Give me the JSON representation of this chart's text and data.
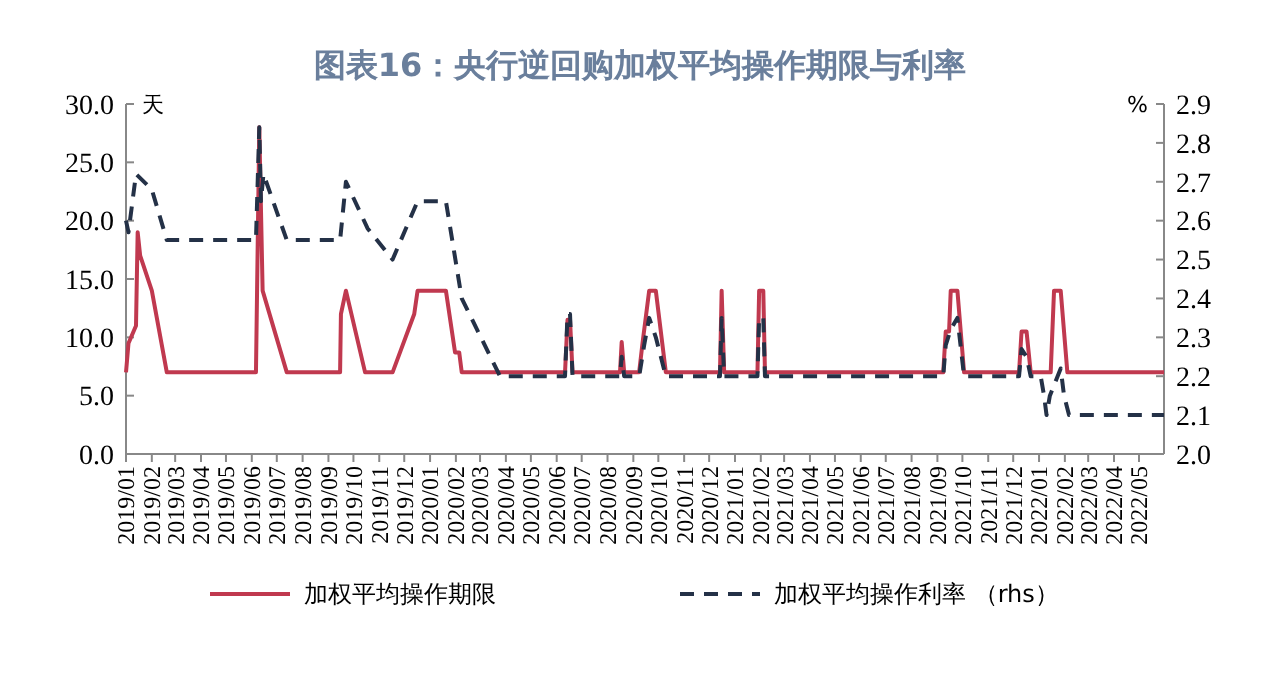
{
  "chart_data": {
    "type": "line",
    "title": "图表16：央行逆回购加权平均操作期限与利率",
    "ylabel": "天",
    "y2label": "%",
    "xlim": [
      "2019-01-01",
      "2022-05-31"
    ],
    "xticks": [
      {
        "value": "2019-01",
        "label": "2019/01"
      },
      {
        "value": "2019-02",
        "label": "2019/02"
      },
      {
        "value": "2019-03",
        "label": "2019/03"
      },
      {
        "value": "2019-04",
        "label": "2019/04"
      },
      {
        "value": "2019-05",
        "label": "2019/05"
      },
      {
        "value": "2019-06",
        "label": "2019/06"
      },
      {
        "value": "2019-07",
        "label": "2019/07"
      },
      {
        "value": "2019-08",
        "label": "2019/08"
      },
      {
        "value": "2019-09",
        "label": "2019/09"
      },
      {
        "value": "2019-10",
        "label": "2019/10"
      },
      {
        "value": "2019-11",
        "label": "2019/11"
      },
      {
        "value": "2019-12",
        "label": "2019/12"
      },
      {
        "value": "2020-01",
        "label": "2020/01"
      },
      {
        "value": "2020-02",
        "label": "2020/02"
      },
      {
        "value": "2020-03",
        "label": "2020/03"
      },
      {
        "value": "2020-04",
        "label": "2020/04"
      },
      {
        "value": "2020-05",
        "label": "2020/05"
      },
      {
        "value": "2020-06",
        "label": "2020/06"
      },
      {
        "value": "2020-07",
        "label": "2020/07"
      },
      {
        "value": "2020-08",
        "label": "2020/08"
      },
      {
        "value": "2020-09",
        "label": "2020/09"
      },
      {
        "value": "2020-10",
        "label": "2020/10"
      },
      {
        "value": "2020-11",
        "label": "2020/11"
      },
      {
        "value": "2020-12",
        "label": "2020/12"
      },
      {
        "value": "2021-01",
        "label": "2021/01"
      },
      {
        "value": "2021-02",
        "label": "2021/02"
      },
      {
        "value": "2021-03",
        "label": "2021/03"
      },
      {
        "value": "2021-04",
        "label": "2021/04"
      },
      {
        "value": "2021-05",
        "label": "2021/05"
      },
      {
        "value": "2021-06",
        "label": "2021/06"
      },
      {
        "value": "2021-07",
        "label": "2021/07"
      },
      {
        "value": "2021-08",
        "label": "2021/08"
      },
      {
        "value": "2021-09",
        "label": "2021/09"
      },
      {
        "value": "2021-10",
        "label": "2021/10"
      },
      {
        "value": "2021-11",
        "label": "2021/11"
      },
      {
        "value": "2021-12",
        "label": "2021/12"
      },
      {
        "value": "2022-01",
        "label": "2022/01"
      },
      {
        "value": "2022-02",
        "label": "2022/02"
      },
      {
        "value": "2022-03",
        "label": "2022/03"
      },
      {
        "value": "2022-04",
        "label": "2022/04"
      },
      {
        "value": "2022-05",
        "label": "2022/05"
      }
    ],
    "ylim": [
      0,
      30
    ],
    "yticks": [
      {
        "value": 0,
        "label": "0.0"
      },
      {
        "value": 5,
        "label": "5.0"
      },
      {
        "value": 10,
        "label": "10.0"
      },
      {
        "value": 15,
        "label": "15.0"
      },
      {
        "value": 20,
        "label": "20.0"
      },
      {
        "value": 25,
        "label": "25.0"
      },
      {
        "value": 30,
        "label": "30.0"
      }
    ],
    "y2lim": [
      2.0,
      2.9
    ],
    "y2ticks": [
      {
        "value": 2.0,
        "label": "2.0"
      },
      2.1,
      2.2,
      2.3,
      2.4,
      2.5,
      2.6,
      2.7,
      2.8,
      2.9
    ],
    "grid": false,
    "legend": "bottom",
    "marker": "none",
    "series": [
      {
        "name": "加权平均操作期限",
        "color": "#c0394f",
        "line_style": "solid",
        "x": [
          "2019-01-01",
          "2019-01-04",
          "2019-01-13",
          "2019-01-15",
          "2019-01-18",
          "2019-02-01",
          "2019-02-19",
          "2019-06-06",
          "2019-06-10",
          "2019-06-14",
          "2019-07-13",
          "2019-09-15",
          "2019-09-16",
          "2019-09-22",
          "2019-10-15",
          "2019-11-17",
          "2019-12-13",
          "2019-12-17",
          "2020-01-20",
          "2020-01-31",
          "2020-02-05",
          "2020-02-08",
          "2020-06-11",
          "2020-06-14",
          "2020-06-17",
          "2020-06-20",
          "2020-08-16",
          "2020-08-18",
          "2020-08-21",
          "2020-09-08",
          "2020-09-12",
          "2020-09-20",
          "2020-09-28",
          "2020-10-10",
          "2020-12-14",
          "2020-12-16",
          "2020-12-19",
          "2021-01-28",
          "2021-01-30",
          "2021-02-04",
          "2021-02-06",
          "2021-09-08",
          "2021-09-11",
          "2021-09-15",
          "2021-09-17",
          "2021-09-25",
          "2021-10-03",
          "2021-12-08",
          "2021-12-11",
          "2021-12-17",
          "2021-12-22",
          "2022-01-15",
          "2022-01-19",
          "2022-01-27",
          "2022-02-04",
          "2022-05-31"
        ],
        "values": [
          7,
          9.5,
          11,
          19,
          17,
          14,
          7,
          7,
          28,
          14,
          7,
          7,
          12,
          14,
          7,
          7,
          12,
          14,
          14,
          8.7,
          8.7,
          7,
          7,
          11.5,
          11.5,
          7,
          7,
          9.6,
          7,
          7,
          9.5,
          14,
          14,
          7,
          7,
          14,
          7,
          7,
          14,
          14,
          7,
          7,
          10.5,
          10.5,
          14,
          14,
          7,
          7,
          10.5,
          10.5,
          7,
          7,
          14,
          14,
          7,
          7
        ]
      },
      {
        "name": "加权平均操作利率 （rhs）",
        "color": "#243147",
        "line_style": "dashed",
        "axis": "y2",
        "x": [
          "2019-01-01",
          "2019-01-04",
          "2019-01-13",
          "2019-02-01",
          "2019-02-19",
          "2019-06-06",
          "2019-06-10",
          "2019-06-12",
          "2019-06-15",
          "2019-07-13",
          "2019-09-15",
          "2019-09-22",
          "2019-10-18",
          "2019-11-17",
          "2019-12-17",
          "2020-01-20",
          "2020-02-08",
          "2020-03-25",
          "2020-06-11",
          "2020-06-14",
          "2020-06-17",
          "2020-06-20",
          "2020-08-16",
          "2020-08-18",
          "2020-08-21",
          "2020-09-08",
          "2020-09-14",
          "2020-09-20",
          "2020-09-28",
          "2020-10-10",
          "2020-12-14",
          "2020-12-16",
          "2020-12-19",
          "2021-01-28",
          "2021-01-30",
          "2021-02-04",
          "2021-02-06",
          "2021-09-08",
          "2021-09-11",
          "2021-09-17",
          "2021-09-25",
          "2021-10-03",
          "2021-12-08",
          "2021-12-11",
          "2021-12-17",
          "2021-12-22",
          "2022-01-03",
          "2022-01-07",
          "2022-01-10",
          "2022-01-14",
          "2022-01-27",
          "2022-01-31",
          "2022-02-06",
          "2022-05-31"
        ],
        "values": [
          2.6,
          2.57,
          2.72,
          2.68,
          2.55,
          2.55,
          2.84,
          2.65,
          2.72,
          2.55,
          2.55,
          2.7,
          2.58,
          2.5,
          2.65,
          2.65,
          2.4,
          2.2,
          2.2,
          2.36,
          2.36,
          2.2,
          2.2,
          2.25,
          2.2,
          2.2,
          2.28,
          2.35,
          2.3,
          2.2,
          2.2,
          2.35,
          2.2,
          2.2,
          2.35,
          2.35,
          2.2,
          2.2,
          2.28,
          2.32,
          2.35,
          2.2,
          2.2,
          2.27,
          2.25,
          2.2,
          2.2,
          2.15,
          2.1,
          2.15,
          2.22,
          2.15,
          2.1,
          2.1
        ]
      }
    ]
  }
}
